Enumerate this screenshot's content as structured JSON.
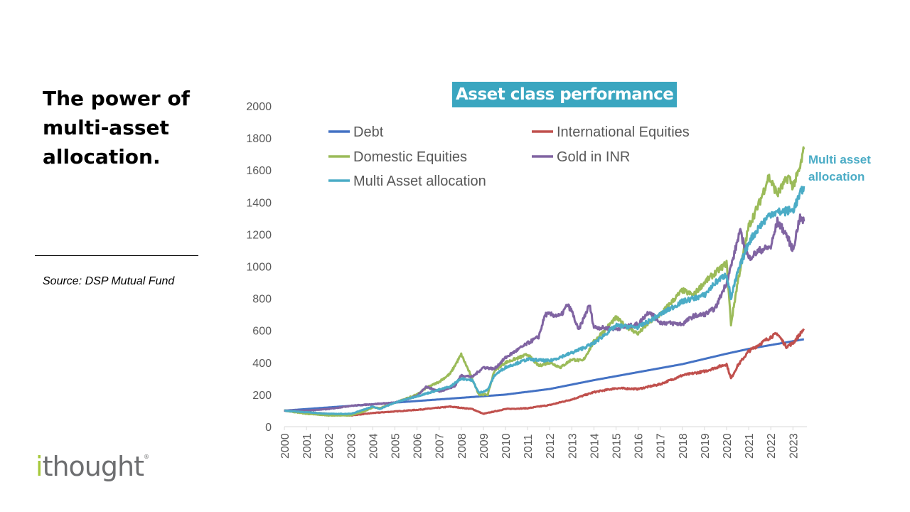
{
  "slide": {
    "headline": "The power of multi-asset allocation.",
    "source": "Source: DSP Mutual Fund",
    "logo_text": "ithought",
    "logo_mark": "®"
  },
  "chart_data": {
    "type": "line",
    "title": "Asset class performance",
    "annotation": [
      "Multi asset",
      "allocation"
    ],
    "xlabel": "",
    "ylabel": "",
    "xlim": [
      2000,
      2023.6
    ],
    "ylim": [
      0,
      2000
    ],
    "x_ticks": [
      "2000",
      "2001",
      "2002",
      "2003",
      "2004",
      "2005",
      "2006",
      "2007",
      "2008",
      "2009",
      "2010",
      "2011",
      "2012",
      "2013",
      "2014",
      "2015",
      "2016",
      "2017",
      "2018",
      "2019",
      "2020",
      "2021",
      "2022",
      "2023"
    ],
    "y_ticks": [
      "0",
      "200",
      "400",
      "600",
      "800",
      "1000",
      "1200",
      "1400",
      "1600",
      "1800",
      "2000"
    ],
    "grid": false,
    "legend": "top-left",
    "series": [
      {
        "name": "Debt",
        "color": "#4472c4",
        "points": [
          [
            2000,
            100
          ],
          [
            2005,
            150
          ],
          [
            2010,
            200
          ],
          [
            2012,
            235
          ],
          [
            2014,
            290
          ],
          [
            2016,
            340
          ],
          [
            2018,
            390
          ],
          [
            2020,
            455
          ],
          [
            2021,
            485
          ],
          [
            2023.5,
            545
          ]
        ]
      },
      {
        "name": "International Equities",
        "color": "#c0504d",
        "points": [
          [
            2000,
            100
          ],
          [
            2003,
            70
          ],
          [
            2004,
            85
          ],
          [
            2006,
            105
          ],
          [
            2007.5,
            125
          ],
          [
            2008.5,
            110
          ],
          [
            2009,
            80
          ],
          [
            2010,
            110
          ],
          [
            2011,
            115
          ],
          [
            2012,
            135
          ],
          [
            2013,
            170
          ],
          [
            2014,
            215
          ],
          [
            2015,
            240
          ],
          [
            2016,
            235
          ],
          [
            2017,
            265
          ],
          [
            2018,
            320
          ],
          [
            2019,
            345
          ],
          [
            2020,
            390
          ],
          [
            2020.2,
            300
          ],
          [
            2020.5,
            380
          ],
          [
            2021,
            470
          ],
          [
            2022,
            560
          ],
          [
            2022.3,
            580
          ],
          [
            2022.7,
            500
          ],
          [
            2023,
            520
          ],
          [
            2023.5,
            610
          ]
        ]
      },
      {
        "name": "Domestic Equities",
        "color": "#9bbb59",
        "points": [
          [
            2000,
            100
          ],
          [
            2001,
            80
          ],
          [
            2002,
            70
          ],
          [
            2003,
            70
          ],
          [
            2003.5,
            90
          ],
          [
            2004,
            120
          ],
          [
            2004.3,
            115
          ],
          [
            2005,
            150
          ],
          [
            2006,
            200
          ],
          [
            2006.4,
            240
          ],
          [
            2007,
            280
          ],
          [
            2007.5,
            330
          ],
          [
            2008,
            450
          ],
          [
            2008.3,
            360
          ],
          [
            2008.8,
            200
          ],
          [
            2009.2,
            200
          ],
          [
            2009.5,
            350
          ],
          [
            2010,
            400
          ],
          [
            2011,
            450
          ],
          [
            2011.5,
            380
          ],
          [
            2012,
            400
          ],
          [
            2012.5,
            370
          ],
          [
            2013,
            420
          ],
          [
            2013.5,
            410
          ],
          [
            2014,
            530
          ],
          [
            2015,
            680
          ],
          [
            2015.5,
            620
          ],
          [
            2016,
            580
          ],
          [
            2016.5,
            650
          ],
          [
            2017,
            700
          ],
          [
            2018,
            850
          ],
          [
            2018.5,
            820
          ],
          [
            2019,
            900
          ],
          [
            2020,
            1020
          ],
          [
            2020.2,
            640
          ],
          [
            2020.5,
            900
          ],
          [
            2021,
            1250
          ],
          [
            2021.5,
            1400
          ],
          [
            2021.9,
            1560
          ],
          [
            2022.3,
            1450
          ],
          [
            2022.8,
            1560
          ],
          [
            2023,
            1500
          ],
          [
            2023.3,
            1600
          ],
          [
            2023.5,
            1730
          ]
        ]
      },
      {
        "name": "Gold in INR",
        "color": "#8064a2",
        "points": [
          [
            2000,
            100
          ],
          [
            2001,
            100
          ],
          [
            2002,
            110
          ],
          [
            2003,
            130
          ],
          [
            2004,
            140
          ],
          [
            2005,
            150
          ],
          [
            2006,
            190
          ],
          [
            2006.4,
            250
          ],
          [
            2007,
            220
          ],
          [
            2007.7,
            250
          ],
          [
            2008,
            320
          ],
          [
            2008.5,
            310
          ],
          [
            2009,
            370
          ],
          [
            2009.5,
            360
          ],
          [
            2010,
            430
          ],
          [
            2011,
            520
          ],
          [
            2011.5,
            560
          ],
          [
            2011.8,
            700
          ],
          [
            2012,
            700
          ],
          [
            2012.5,
            690
          ],
          [
            2012.8,
            760
          ],
          [
            2013,
            720
          ],
          [
            2013.3,
            600
          ],
          [
            2013.8,
            760
          ],
          [
            2014,
            620
          ],
          [
            2015,
            610
          ],
          [
            2016,
            640
          ],
          [
            2016.5,
            720
          ],
          [
            2017,
            650
          ],
          [
            2018,
            640
          ],
          [
            2018.5,
            690
          ],
          [
            2019,
            700
          ],
          [
            2019.5,
            740
          ],
          [
            2020,
            900
          ],
          [
            2020.3,
            1050
          ],
          [
            2020.6,
            1220
          ],
          [
            2021,
            1050
          ],
          [
            2021.5,
            1100
          ],
          [
            2022,
            1120
          ],
          [
            2022.3,
            1280
          ],
          [
            2022.7,
            1200
          ],
          [
            2023,
            1100
          ],
          [
            2023.3,
            1300
          ],
          [
            2023.5,
            1280
          ]
        ]
      },
      {
        "name": "Multi Asset allocation",
        "color": "#4bacc6",
        "points": [
          [
            2000,
            100
          ],
          [
            2001,
            90
          ],
          [
            2002,
            80
          ],
          [
            2003,
            80
          ],
          [
            2004,
            125
          ],
          [
            2004.3,
            110
          ],
          [
            2005,
            150
          ],
          [
            2006,
            190
          ],
          [
            2007,
            230
          ],
          [
            2007.5,
            250
          ],
          [
            2008,
            300
          ],
          [
            2008.5,
            290
          ],
          [
            2008.8,
            210
          ],
          [
            2009.2,
            230
          ],
          [
            2009.5,
            320
          ],
          [
            2010,
            370
          ],
          [
            2011,
            420
          ],
          [
            2012,
            410
          ],
          [
            2013,
            460
          ],
          [
            2014,
            520
          ],
          [
            2015,
            630
          ],
          [
            2016,
            620
          ],
          [
            2017,
            700
          ],
          [
            2018,
            780
          ],
          [
            2019,
            820
          ],
          [
            2019.5,
            900
          ],
          [
            2020,
            950
          ],
          [
            2020.2,
            800
          ],
          [
            2020.5,
            960
          ],
          [
            2021,
            1150
          ],
          [
            2021.5,
            1250
          ],
          [
            2022,
            1330
          ],
          [
            2022.5,
            1340
          ],
          [
            2023,
            1350
          ],
          [
            2023.5,
            1500
          ]
        ]
      }
    ]
  }
}
